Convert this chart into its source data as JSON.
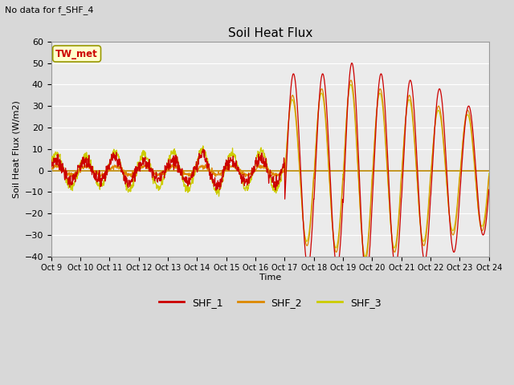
{
  "title": "Soil Heat Flux",
  "subtitle": "No data for f_SHF_4",
  "ylabel": "Soil Heat Flux (W/m2)",
  "xlabel": "Time",
  "ylim": [
    -40,
    60
  ],
  "background_color": "#d8d8d8",
  "plot_bg_color": "#ebebeb",
  "grid_color": "#ffffff",
  "xtick_labels": [
    "Oct 9",
    "Oct 10",
    "Oct 11",
    "Oct 12",
    "Oct 13",
    "Oct 14",
    "Oct 15",
    "Oct 16",
    "Oct 17",
    "Oct 18",
    "Oct 19",
    "Oct 20",
    "Oct 21",
    "Oct 22",
    "Oct 23",
    "Oct 24"
  ],
  "colors": {
    "SHF_1": "#cc0000",
    "SHF_2": "#dd8800",
    "SHF_3": "#cccc00",
    "horizontal_line": "#bb8800"
  },
  "annotation_box": {
    "text": "TW_met",
    "bg_color": "#ffffcc",
    "border_color": "#999900",
    "text_color": "#cc0000"
  }
}
